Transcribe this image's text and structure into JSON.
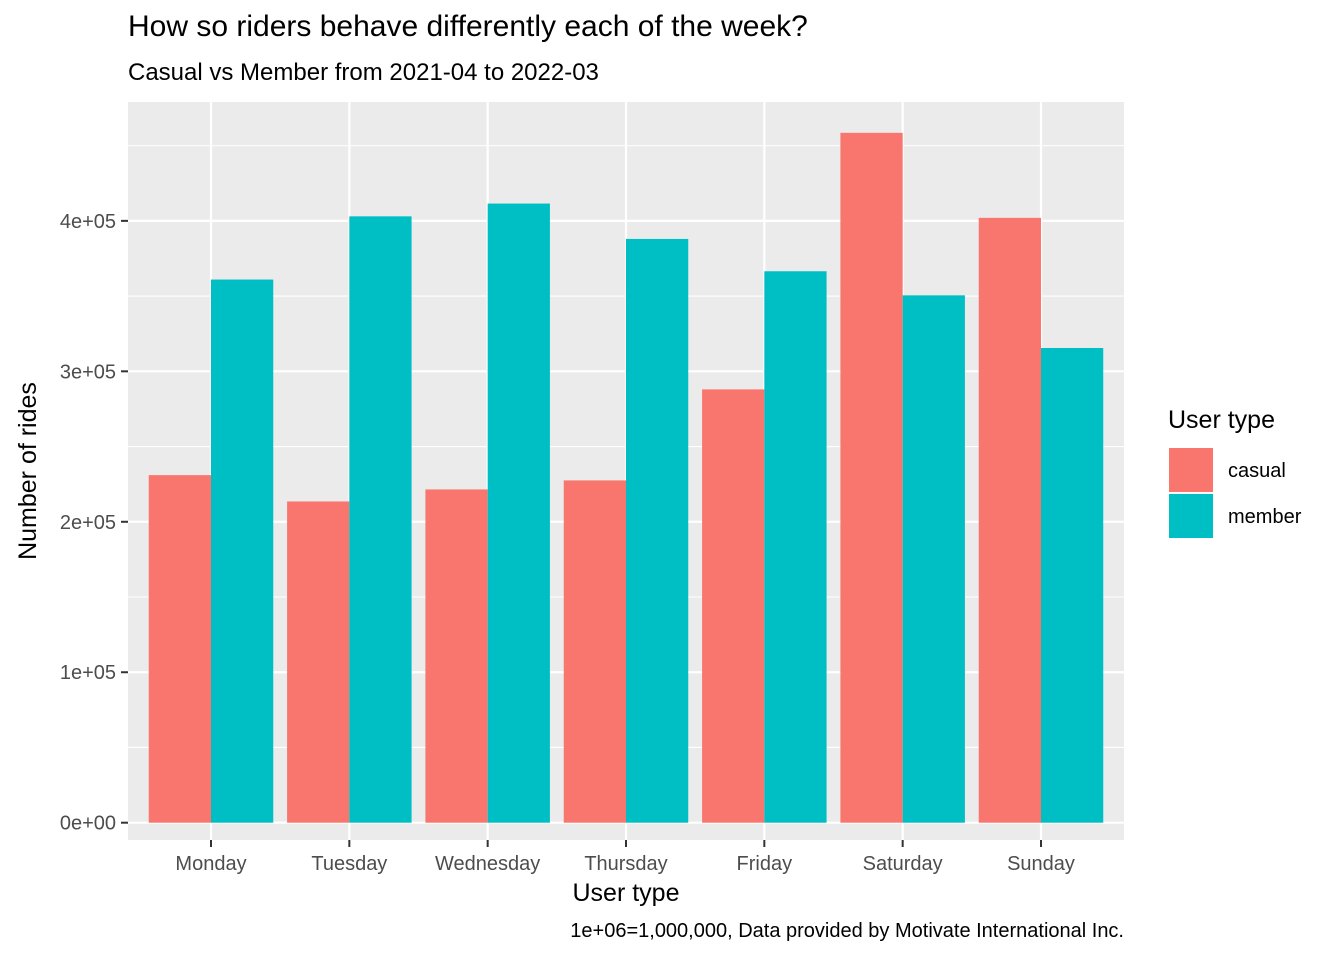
{
  "chart_data": {
    "type": "bar",
    "title": "How so riders behave differently each of the week?",
    "subtitle": "Casual vs Member from 2021-04 to 2022-03",
    "caption": "1e+06=1,000,000, Data provided by Motivate International Inc.",
    "xlabel": "User type",
    "ylabel": "Number of rides",
    "categories": [
      "Monday",
      "Tuesday",
      "Wednesday",
      "Thursday",
      "Friday",
      "Saturday",
      "Sunday"
    ],
    "series": [
      {
        "name": "casual",
        "color": "#F8766D",
        "values": [
          231000,
          213500,
          221500,
          227500,
          288000,
          458500,
          402000
        ]
      },
      {
        "name": "member",
        "color": "#00BFC4",
        "values": [
          361000,
          403000,
          411500,
          388000,
          366500,
          350500,
          315500
        ]
      }
    ],
    "ylim": [
      -11500,
      479000
    ],
    "yticks": [
      0,
      100000,
      200000,
      300000,
      400000
    ],
    "ytick_labels": [
      "0e+00",
      "1e+05",
      "2e+05",
      "3e+05",
      "4e+05"
    ],
    "legend": {
      "title": "User type",
      "position": "right"
    },
    "grid": true,
    "panel_background": "#EBEBEB"
  }
}
